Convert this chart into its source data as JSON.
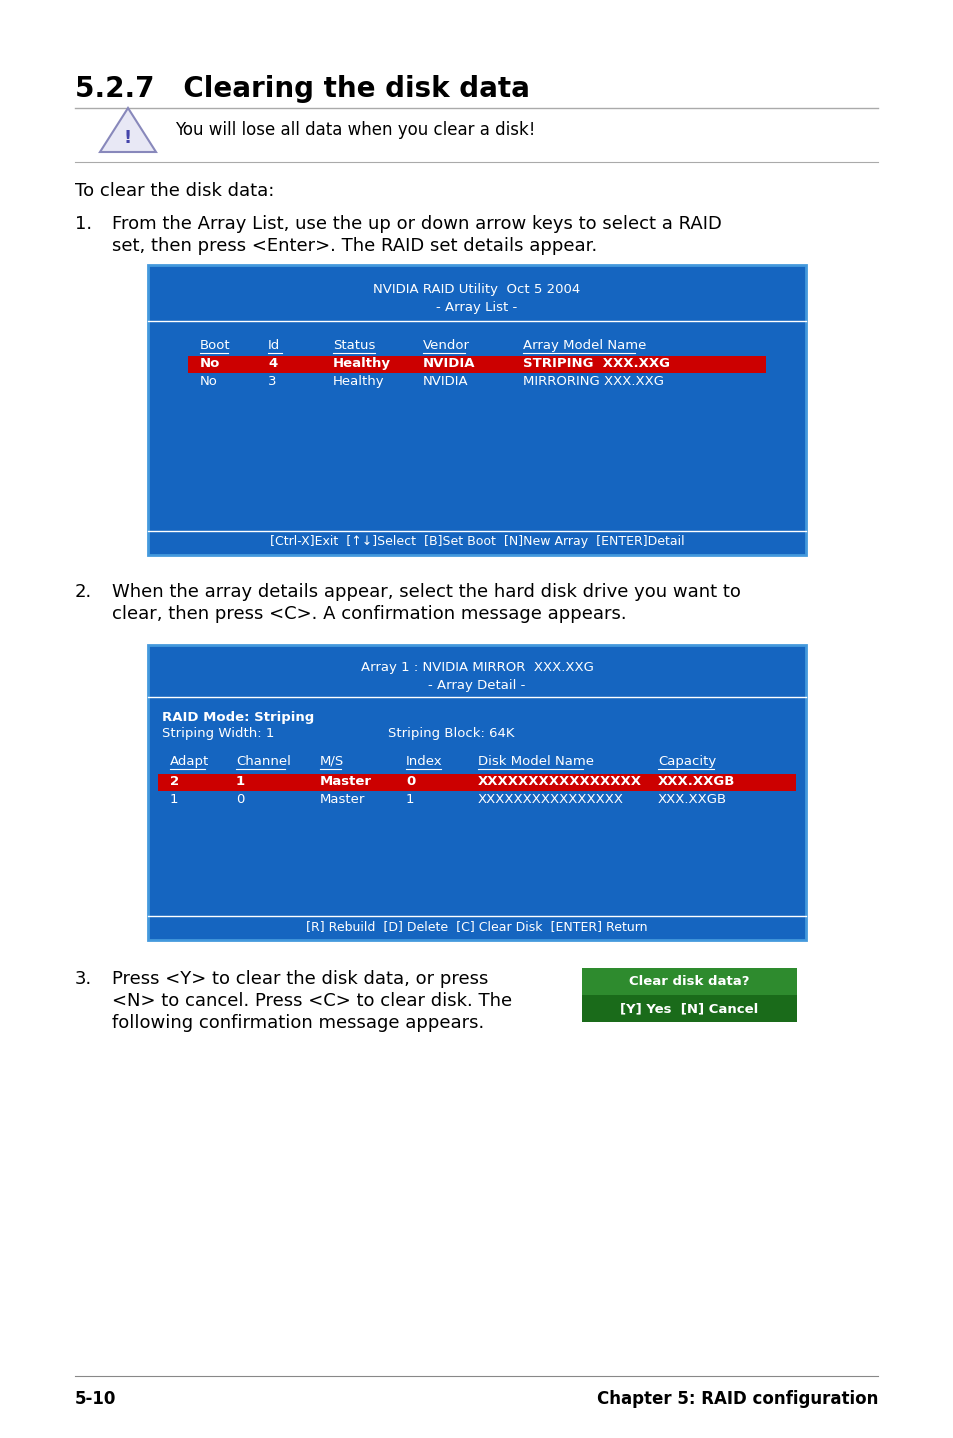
{
  "title": "5.2.7   Clearing the disk data",
  "warning_text": "You will lose all data when you clear a disk!",
  "intro_text": "To clear the disk data:",
  "step1_line1": "From the Array List, use the up or down arrow keys to select a RAID",
  "step1_line2": "set, then press <Enter>. The RAID set details appear.",
  "step2_line1": "When the array details appear, select the hard disk drive you want to",
  "step2_line2": "clear, then press <C>. A confirmation message appears.",
  "step3_line1": "Press <Y> to clear the disk data, or press",
  "step3_line2": "<N> to cancel. Press <C> to clear disk. The",
  "step3_line3": "following confirmation message appears.",
  "footer_left": "5-10",
  "footer_right": "Chapter 5: RAID configuration",
  "screen1_title1": "NVIDIA RAID Utility  Oct 5 2004",
  "screen1_title2": "- Array List -",
  "screen1_col_headers": [
    "Boot",
    "Id",
    "Status",
    "Vendor",
    "Array Model Name"
  ],
  "screen1_row1": [
    "No",
    "4",
    "Healthy",
    "NVIDIA",
    "STRIPING  XXX.XXG"
  ],
  "screen1_row2": [
    "No",
    "3",
    "Healthy",
    "NVIDIA",
    "MIRRORING XXX.XXG"
  ],
  "screen1_footer": "[Ctrl-X]Exit  [↑↓]Select  [B]Set Boot  [N]New Array  [ENTER]Detail",
  "screen2_title1": "Array 1 : NVIDIA MIRROR  XXX.XXG",
  "screen2_title2": "- Array Detail -",
  "screen2_info1": "RAID Mode: Striping",
  "screen2_info2": "Striping Width: 1",
  "screen2_info3": "Striping Block: 64K",
  "screen2_col_headers": [
    "Adapt",
    "Channel",
    "M/S",
    "Index",
    "Disk Model Name",
    "Capacity"
  ],
  "screen2_row1": [
    "2",
    "1",
    "Master",
    "0",
    "XXXXXXXXXXXXXXXX",
    "XXX.XXGB"
  ],
  "screen2_row2": [
    "1",
    "0",
    "Master",
    "1",
    "XXXXXXXXXXXXXXXX",
    "XXX.XXGB"
  ],
  "screen2_footer": "[R] Rebuild  [D] Delete  [C] Clear Disk  [ENTER] Return",
  "confirm_title": "Clear disk data?",
  "confirm_body": "[Y] Yes  [N] Cancel",
  "bg_color": "#ffffff",
  "screen_bg": "#1565c0",
  "screen_border": "#4499dd",
  "screen_text": "#ffffff",
  "highlight_bg": "#cc0000",
  "confirm_title_bg": "#2e8b2e",
  "confirm_body_bg": "#1a6b1a"
}
